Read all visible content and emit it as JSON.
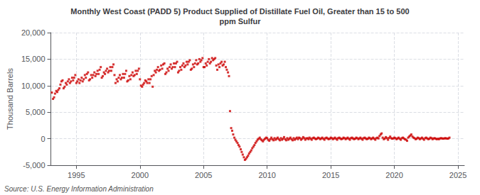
{
  "chart_data": {
    "type": "scatter",
    "title": "Monthly West Coast (PADD 5) Product Supplied of Distillate Fuel Oil, Greater than 15 to 500\nppm Sulfur",
    "ylabel": "Thousand Barrels",
    "annotations": [
      "Source: U.S. Energy Information Administration"
    ],
    "color": "#cc0000",
    "marker": "square",
    "grid": true,
    "xlim": [
      1993.0,
      2025.5
    ],
    "xticks": [
      1995,
      2000,
      2005,
      2010,
      2015,
      2020,
      2025
    ],
    "ylim": [
      -5000,
      20000
    ],
    "yticks": [
      {
        "value": -5000,
        "label": "-5,000"
      },
      0,
      {
        "value": 5000,
        "label": "5,000"
      },
      {
        "value": 10000,
        "label": "10,000"
      },
      {
        "value": 15000,
        "label": "15,000"
      },
      {
        "value": 20000,
        "label": "20,000"
      }
    ],
    "x": [
      1993.08,
      1993.17,
      1993.25,
      1993.33,
      1993.42,
      1993.5,
      1993.58,
      1993.67,
      1993.75,
      1993.83,
      1993.92,
      1994.0,
      1994.08,
      1994.17,
      1994.25,
      1994.33,
      1994.42,
      1994.5,
      1994.58,
      1994.67,
      1994.75,
      1994.83,
      1994.92,
      1995.0,
      1995.08,
      1995.17,
      1995.25,
      1995.33,
      1995.42,
      1995.5,
      1995.58,
      1995.67,
      1995.75,
      1995.83,
      1995.92,
      1996.0,
      1996.08,
      1996.17,
      1996.25,
      1996.33,
      1996.42,
      1996.5,
      1996.58,
      1996.67,
      1996.75,
      1996.83,
      1996.92,
      1997.0,
      1997.08,
      1997.17,
      1997.25,
      1997.33,
      1997.42,
      1997.5,
      1997.58,
      1997.67,
      1997.75,
      1997.83,
      1997.92,
      1998.0,
      1998.08,
      1998.17,
      1998.25,
      1998.33,
      1998.42,
      1998.5,
      1998.58,
      1998.67,
      1998.75,
      1998.83,
      1998.92,
      1999.0,
      1999.08,
      1999.17,
      1999.25,
      1999.33,
      1999.42,
      1999.5,
      1999.58,
      1999.67,
      1999.75,
      1999.83,
      1999.92,
      2000.0,
      2000.08,
      2000.17,
      2000.25,
      2000.33,
      2000.42,
      2000.5,
      2000.58,
      2000.67,
      2000.75,
      2000.83,
      2000.92,
      2001.0,
      2001.08,
      2001.17,
      2001.25,
      2001.33,
      2001.42,
      2001.5,
      2001.58,
      2001.67,
      2001.75,
      2001.83,
      2001.92,
      2002.0,
      2002.08,
      2002.17,
      2002.25,
      2002.33,
      2002.42,
      2002.5,
      2002.58,
      2002.67,
      2002.75,
      2002.83,
      2002.92,
      2003.0,
      2003.08,
      2003.17,
      2003.25,
      2003.33,
      2003.42,
      2003.5,
      2003.58,
      2003.67,
      2003.75,
      2003.83,
      2003.92,
      2004.0,
      2004.08,
      2004.17,
      2004.25,
      2004.33,
      2004.42,
      2004.5,
      2004.58,
      2004.67,
      2004.75,
      2004.83,
      2004.92,
      2005.0,
      2005.08,
      2005.17,
      2005.25,
      2005.33,
      2005.42,
      2005.5,
      2005.58,
      2005.67,
      2005.75,
      2005.83,
      2005.92,
      2006.0,
      2006.08,
      2006.17,
      2006.25,
      2006.33,
      2006.42,
      2006.5,
      2006.58,
      2006.67,
      2006.75,
      2006.83,
      2006.92,
      2007.0,
      2007.08,
      2007.17,
      2007.25,
      2007.33,
      2007.42,
      2007.5,
      2007.58,
      2007.67,
      2007.75,
      2007.83,
      2007.92,
      2008.0,
      2008.08,
      2008.17,
      2008.25,
      2008.33,
      2008.42,
      2008.5,
      2008.58,
      2008.67,
      2008.75,
      2008.83,
      2008.92,
      2009.0,
      2009.08,
      2009.17,
      2009.25,
      2009.33,
      2009.42,
      2009.5,
      2009.58,
      2009.67,
      2009.75,
      2009.83,
      2009.92,
      2010.0,
      2010.08,
      2010.17,
      2010.25,
      2010.33,
      2010.42,
      2010.5,
      2010.58,
      2010.67,
      2010.75,
      2010.83,
      2010.92,
      2011.0,
      2011.08,
      2011.17,
      2011.25,
      2011.33,
      2011.42,
      2011.5,
      2011.58,
      2011.67,
      2011.75,
      2011.83,
      2011.92,
      2012.0,
      2012.08,
      2012.17,
      2012.25,
      2012.33,
      2012.42,
      2012.5,
      2012.58,
      2012.67,
      2012.75,
      2012.83,
      2012.92,
      2013.0,
      2013.08,
      2013.17,
      2013.25,
      2013.33,
      2013.42,
      2013.5,
      2013.58,
      2013.67,
      2013.75,
      2013.83,
      2013.92,
      2014.0,
      2014.08,
      2014.17,
      2014.25,
      2014.33,
      2014.42,
      2014.5,
      2014.58,
      2014.67,
      2014.75,
      2014.83,
      2014.92,
      2015.0,
      2015.08,
      2015.17,
      2015.25,
      2015.33,
      2015.42,
      2015.5,
      2015.58,
      2015.67,
      2015.75,
      2015.83,
      2015.92,
      2016.0,
      2016.08,
      2016.17,
      2016.25,
      2016.33,
      2016.42,
      2016.5,
      2016.58,
      2016.67,
      2016.75,
      2016.83,
      2016.92,
      2017.0,
      2017.08,
      2017.17,
      2017.25,
      2017.33,
      2017.42,
      2017.5,
      2017.58,
      2017.67,
      2017.75,
      2017.83,
      2017.92,
      2018.0,
      2018.08,
      2018.17,
      2018.25,
      2018.33,
      2018.42,
      2018.5,
      2018.58,
      2018.67,
      2018.75,
      2018.83,
      2018.92,
      2019.0,
      2019.08,
      2019.17,
      2019.25,
      2019.33,
      2019.42,
      2019.5,
      2019.58,
      2019.67,
      2019.75,
      2019.83,
      2019.92,
      2020.0,
      2020.08,
      2020.17,
      2020.25,
      2020.33,
      2020.42,
      2020.5,
      2020.58,
      2020.67,
      2020.75,
      2020.83,
      2020.92,
      2021.0,
      2021.08,
      2021.17,
      2021.25,
      2021.33,
      2021.42,
      2021.5,
      2021.58,
      2021.67,
      2021.75,
      2021.83,
      2021.92,
      2022.0,
      2022.08,
      2022.17,
      2022.25,
      2022.33,
      2022.42,
      2022.5,
      2022.58,
      2022.67,
      2022.75,
      2022.83,
      2022.92,
      2023.0,
      2023.08,
      2023.17,
      2023.25,
      2023.33,
      2023.42,
      2023.5,
      2023.58,
      2023.67,
      2023.75,
      2023.83,
      2023.92,
      2024.0,
      2024.08,
      2024.17,
      2024.25,
      2024.33
    ],
    "values": [
      8700,
      7500,
      7800,
      8500,
      9000,
      8800,
      9200,
      9500,
      10200,
      10800,
      11000,
      9500,
      9800,
      10500,
      10200,
      10800,
      11200,
      10500,
      10800,
      11500,
      11000,
      11500,
      12000,
      10500,
      10800,
      11200,
      10500,
      11000,
      11500,
      10800,
      11200,
      12000,
      11500,
      12200,
      12500,
      11000,
      11200,
      12000,
      11500,
      12000,
      12500,
      11800,
      12200,
      12800,
      12200,
      13000,
      13500,
      11500,
      11800,
      12500,
      12200,
      12800,
      13200,
      12500,
      12800,
      13500,
      12800,
      13500,
      14000,
      12000,
      10500,
      11200,
      10800,
      11500,
      12000,
      11200,
      11500,
      12200,
      11500,
      12200,
      12800,
      10800,
      11000,
      11800,
      11200,
      12000,
      12500,
      11800,
      12000,
      12800,
      12200,
      12800,
      13200,
      11200,
      10000,
      9800,
      10200,
      10500,
      11000,
      10800,
      10500,
      11200,
      10500,
      11200,
      11800,
      9800,
      12000,
      12800,
      12500,
      13000,
      13500,
      12800,
      13000,
      13800,
      13200,
      14000,
      14200,
      12200,
      12500,
      13200,
      12800,
      13500,
      14000,
      13200,
      13500,
      14200,
      13500,
      14200,
      14500,
      12500,
      12800,
      13500,
      13000,
      13800,
      14200,
      13500,
      13800,
      14500,
      14000,
      14500,
      14800,
      13000,
      13200,
      14000,
      13500,
      14200,
      14800,
      14000,
      14200,
      15000,
      14500,
      14800,
      15200,
      13500,
      13500,
      14200,
      13800,
      14500,
      15000,
      14200,
      14500,
      15200,
      14800,
      15000,
      15200,
      13800,
      13000,
      14000,
      13500,
      14200,
      14500,
      13800,
      14000,
      14500,
      13500,
      13000,
      12500,
      11800,
      5200,
      2000,
      1500,
      800,
      200,
      -200,
      -500,
      -800,
      -1200,
      -1500,
      -2000,
      -2500,
      -3000,
      -3500,
      -4000,
      -3800,
      -3500,
      -3200,
      -2800,
      -2500,
      -2200,
      -1800,
      -1500,
      -1200,
      -800,
      -500,
      -200,
      0,
      200,
      -100,
      -300,
      -500,
      -200,
      0,
      200,
      100,
      -200,
      -400,
      -100,
      200,
      -100,
      -300,
      100,
      -200,
      0,
      200,
      -100,
      -300,
      100,
      -200,
      0,
      300,
      -100,
      -300,
      100,
      -200,
      0,
      200,
      -100,
      -300,
      100,
      -200,
      0,
      200,
      -100,
      200,
      100,
      -200,
      0,
      300,
      100,
      -200,
      50,
      100,
      -100,
      200,
      0,
      -200,
      100,
      200,
      50,
      -100,
      0,
      200,
      100,
      -100,
      50,
      200,
      0,
      -200,
      100,
      200,
      50,
      -100,
      0,
      200,
      100,
      -100,
      50,
      200,
      0,
      -200,
      100,
      200,
      50,
      -100,
      0,
      200,
      100,
      -100,
      50,
      200,
      0,
      -200,
      100,
      200,
      50,
      -100,
      0,
      200,
      100,
      -100,
      50,
      200,
      0,
      -200,
      100,
      200,
      50,
      -100,
      0,
      200,
      100,
      -100,
      50,
      200,
      0,
      -200,
      100,
      200,
      50,
      500,
      800,
      1000,
      200,
      -100,
      50,
      300,
      100,
      -200,
      150,
      400,
      100,
      0,
      50,
      200,
      100,
      -100,
      50,
      200,
      0,
      -200,
      100,
      200,
      50,
      -100,
      -200,
      -400,
      200,
      400,
      600,
      800,
      400,
      200,
      100,
      -100,
      0,
      200,
      100,
      -100,
      50,
      200,
      0,
      -200,
      100,
      200,
      50,
      -100,
      0,
      200,
      100,
      -100,
      50,
      100,
      0,
      -100,
      0,
      -100,
      50,
      100,
      50,
      0,
      50,
      100,
      50,
      0,
      50,
      200
    ]
  }
}
